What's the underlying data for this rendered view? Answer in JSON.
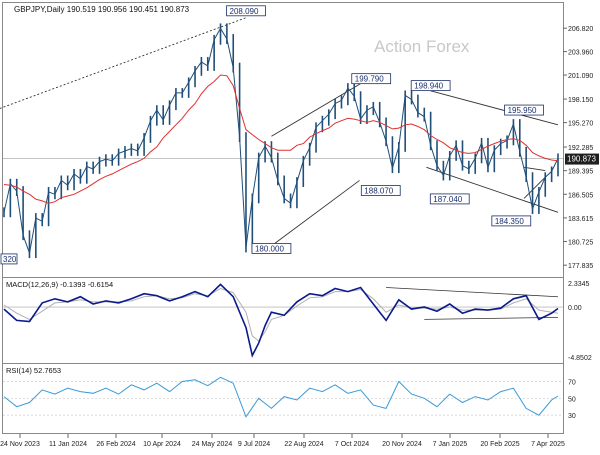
{
  "header": {
    "symbol_line": "GBPJPY,Daily  190.519 190.956 190.451 190.873"
  },
  "watermark": "Action Forex",
  "colors": {
    "price": "#1f4e79",
    "ma": "#e03030",
    "macd": "#0a1a8c",
    "signal": "#b0b0b0",
    "rsi": "#3a9ad9",
    "trend": "#333333",
    "grid": "#d9d9d9",
    "price_box": "#1f1f1f"
  },
  "chart_data": [
    {
      "type": "line",
      "title": "GBPJPY,Daily",
      "ylim": [
        177.0,
        208.8
      ],
      "yticks": [
        "206.820",
        "203.960",
        "201.090",
        "198.150",
        "195.270",
        "192.285",
        "189.395",
        "186.505",
        "183.615",
        "180.725",
        "177.835"
      ],
      "ytick_values": [
        206.82,
        203.96,
        201.09,
        198.15,
        195.27,
        192.285,
        189.395,
        186.505,
        183.615,
        180.725,
        177.835
      ],
      "xticks": [
        "24 Nov 2023",
        "11 Jan 2024",
        "26 Feb 2024",
        "10 Apr 2024",
        "24 May 2024",
        "9 Jul 2024",
        "22 Aug 2024",
        "7 Oct 2024",
        "20 Nov 2024",
        "7 Jan 2025",
        "20 Feb 2025",
        "7 Apr 2025"
      ],
      "x": [
        0,
        6,
        12,
        18,
        24,
        30,
        36,
        42,
        48,
        54,
        60,
        66,
        72,
        78,
        84,
        90,
        96,
        102,
        108,
        114,
        120,
        126,
        132,
        138,
        144,
        150,
        156,
        162,
        168,
        174,
        180,
        186,
        192,
        198,
        204,
        210,
        216,
        222,
        228,
        234,
        240,
        246,
        252,
        258,
        264,
        270,
        276,
        282,
        288,
        294,
        300,
        306,
        312,
        318,
        324,
        330,
        336,
        342,
        348,
        354,
        360,
        366,
        372,
        378,
        384,
        390,
        396,
        402,
        408,
        414,
        420,
        426,
        432,
        438,
        444,
        450,
        456,
        462,
        468,
        474,
        480,
        486,
        492,
        498,
        504,
        510,
        516,
        522
      ],
      "series": [
        {
          "name": "",
          "values": [
            184.3,
            187.8,
            186.9,
            181.5,
            179.3,
            183.6,
            183.2,
            186.8,
            186.5,
            188.2,
            187.6,
            189.0,
            188.4,
            189.9,
            189.6,
            190.5,
            190.8,
            190.6,
            191.5,
            191.8,
            192.1,
            191.8,
            193.4,
            195.5,
            196.8,
            195.6,
            197.4,
            198.9,
            198.9,
            200.2,
            201.6,
            202.7,
            202.2,
            205.4,
            206.8,
            205.5,
            202.0,
            193.5,
            180.0,
            186.0,
            191.0,
            192.4,
            191.0,
            188.2,
            186.0,
            185.4,
            188.0,
            190.6,
            192.2,
            194.7,
            195.5,
            196.3,
            197.6,
            198.0,
            199.5,
            198.5,
            195.7,
            196.8,
            197.2,
            195.3,
            193.0,
            189.7,
            192.3,
            198.6,
            198.1,
            196.5,
            196.0,
            192.5,
            190.0,
            188.8,
            191.2,
            192.5,
            190.0,
            189.6,
            190.9,
            192.8,
            189.8,
            191.9,
            192.7,
            193.1,
            195.1,
            191.7,
            188.6,
            184.7,
            186.8,
            188.6,
            189.3,
            190.9
          ]
        },
        {
          "name": "",
          "values": [
            187.7,
            187.6,
            187.4,
            186.9,
            186.5,
            185.9,
            185.7,
            185.4,
            185.6,
            186.1,
            186.3,
            186.5,
            186.9,
            187.3,
            187.8,
            188.3,
            188.7,
            189.0,
            189.4,
            189.8,
            190.2,
            190.5,
            190.9,
            191.7,
            192.3,
            193.4,
            194.2,
            195.0,
            195.8,
            196.8,
            197.6,
            198.8,
            199.7,
            200.3,
            201.1,
            201.0,
            199.8,
            197.0,
            194.4,
            193.8,
            193.2,
            192.7,
            192.2,
            191.9,
            191.9,
            191.9,
            192.5,
            192.7,
            193.5,
            193.9,
            194.3,
            194.6,
            195.2,
            195.5,
            195.8,
            195.7,
            195.5,
            195.3,
            195.5,
            195.3,
            194.9,
            194.5,
            194.6,
            195.0,
            195.1,
            194.8,
            194.4,
            193.7,
            193.2,
            192.8,
            192.2,
            191.9,
            191.6,
            191.5,
            191.6,
            192.0,
            192.4,
            192.7,
            193.0,
            193.2,
            193.3,
            193.1,
            192.5,
            191.6,
            191.2,
            190.9,
            190.7,
            190.6
          ]
        }
      ],
      "annotations": [
        "208.090",
        "199.790",
        "198.940",
        "195.950",
        "188.070",
        "187.040",
        "184.350",
        "180.000",
        "320"
      ],
      "annotation_values": [
        208.09,
        199.79,
        198.94,
        195.95,
        188.07,
        187.04,
        184.35,
        180.0
      ],
      "current_label": "190.873",
      "current_value": 190.873,
      "grid": false
    },
    {
      "type": "line",
      "title": "MACD(12,26,9) -0.1393 -0.6154",
      "ylim": [
        -4.8502,
        2.3345
      ],
      "yticks": [
        "2.3345",
        "0.00",
        "-4.8502"
      ],
      "ytick_values": [
        2.3345,
        0.0,
        -4.8502
      ],
      "x": [
        0,
        12,
        24,
        36,
        48,
        60,
        72,
        84,
        96,
        108,
        120,
        132,
        144,
        156,
        168,
        180,
        192,
        204,
        216,
        228,
        234,
        240,
        246,
        252,
        264,
        276,
        288,
        300,
        312,
        324,
        336,
        348,
        360,
        372,
        384,
        396,
        408,
        420,
        432,
        444,
        456,
        468,
        480,
        492,
        504,
        516,
        522
      ],
      "series": [
        {
          "name": "",
          "values": [
            -0.2,
            -1.3,
            -1.4,
            0.4,
            0.8,
            0.5,
            1.0,
            0.3,
            0.6,
            0.4,
            0.8,
            1.3,
            1.1,
            0.6,
            1.0,
            1.5,
            1.0,
            2.2,
            1.0,
            -2.0,
            -4.7,
            -3.5,
            -1.8,
            -0.5,
            -0.8,
            0.5,
            1.3,
            1.1,
            1.8,
            1.5,
            1.9,
            0.3,
            -1.3,
            0.7,
            -0.2,
            0.0,
            -0.4,
            0.3,
            -0.6,
            -0.2,
            -0.3,
            -0.1,
            0.8,
            1.1,
            -1.2,
            -0.6,
            -0.14
          ]
        },
        {
          "name": "",
          "values": [
            0.2,
            -0.6,
            -1.2,
            -0.4,
            0.4,
            0.5,
            0.7,
            0.5,
            0.5,
            0.5,
            0.6,
            1.0,
            1.1,
            0.8,
            0.9,
            1.3,
            1.1,
            1.8,
            1.4,
            -0.5,
            -2.8,
            -3.3,
            -2.4,
            -1.2,
            -0.8,
            0.1,
            0.9,
            1.0,
            1.5,
            1.5,
            1.7,
            0.8,
            -0.5,
            0.2,
            -0.1,
            -0.1,
            -0.2,
            0.0,
            -0.3,
            -0.3,
            -0.3,
            -0.2,
            0.4,
            0.8,
            -0.3,
            -0.5,
            -0.6
          ]
        }
      ],
      "grid": false
    },
    {
      "type": "line",
      "title": "RSI(14) 52.7653",
      "ylim": [
        10,
        86
      ],
      "yticks": [
        "70",
        "50",
        "30"
      ],
      "ytick_values": [
        70,
        50,
        30
      ],
      "x": [
        0,
        12,
        24,
        36,
        48,
        60,
        72,
        84,
        96,
        108,
        120,
        132,
        144,
        156,
        168,
        180,
        192,
        204,
        216,
        228,
        240,
        252,
        264,
        276,
        288,
        300,
        312,
        324,
        336,
        348,
        360,
        372,
        384,
        396,
        408,
        420,
        432,
        444,
        456,
        468,
        480,
        492,
        504,
        516,
        522
      ],
      "series": [
        {
          "name": "",
          "values": [
            52,
            40,
            45,
            60,
            55,
            62,
            58,
            56,
            62,
            55,
            66,
            60,
            68,
            58,
            70,
            72,
            65,
            75,
            68,
            28,
            50,
            38,
            52,
            48,
            62,
            58,
            66,
            56,
            60,
            42,
            38,
            70,
            55,
            50,
            40,
            55,
            45,
            52,
            48,
            58,
            62,
            38,
            30,
            48,
            52.8
          ]
        }
      ],
      "grid": false
    }
  ]
}
